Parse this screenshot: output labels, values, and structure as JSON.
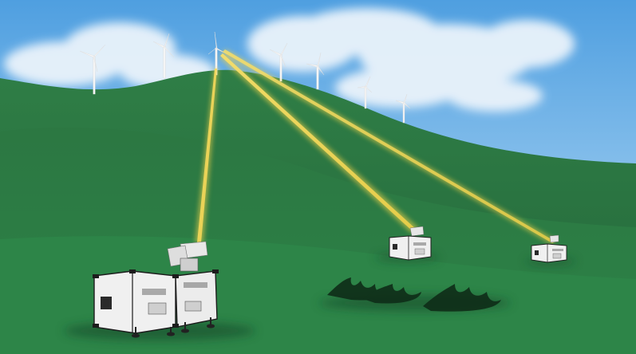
{
  "scene": {
    "sky_top": "#5aa9e6",
    "sky_bottom": "#b9dcf5",
    "cloud": "#e8f2fb",
    "hill_far": "#2f7d45",
    "hill_mid": "#2a7340",
    "hill_near": "#2f8a4a",
    "ground_shadow": "#1f5a32",
    "beam": "#f3d34a",
    "unit_body": "#f2f2f2",
    "unit_edge": "#1c1c1c",
    "turbine": "#f5f5f5"
  },
  "objects": {
    "turbines": [
      "wind-turbine",
      "wind-turbine",
      "wind-turbine",
      "wind-turbine",
      "wind-turbine",
      "wind-turbine",
      "wind-turbine"
    ],
    "lidar_units": [
      "lidar-unit-large",
      "lidar-unit-medium",
      "lidar-unit-small"
    ],
    "beams": [
      "laser-beam-vertical",
      "laser-beam-to-medium",
      "laser-beam-to-small"
    ]
  }
}
